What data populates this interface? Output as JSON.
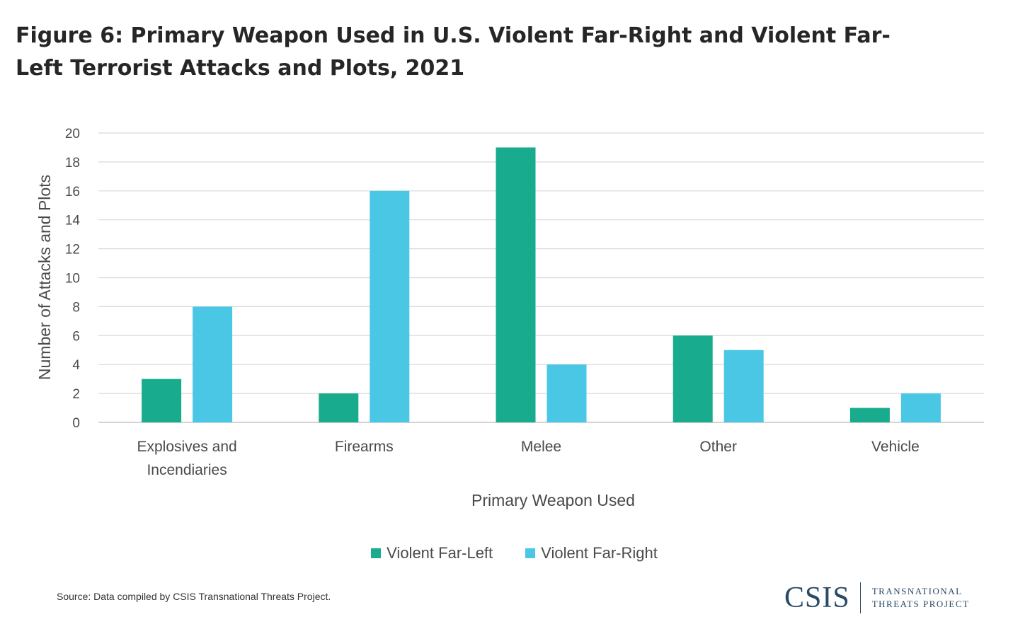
{
  "title": "Figure 6: Primary Weapon Used in U.S. Violent Far-Right and Violent Far-Left Terrorist Attacks and Plots, 2021",
  "source": "Source: Data compiled by CSIS Transnational Threats Project.",
  "logo": {
    "main": "CSIS",
    "sub_line1": "TRANSNATIONAL",
    "sub_line2": "THREATS PROJECT"
  },
  "chart_data": {
    "type": "bar",
    "title": "Figure 6: Primary Weapon Used in U.S. Violent Far-Right and Violent Far-Left Terrorist Attacks and Plots, 2021",
    "categories": [
      "Explosives and Incendiaries",
      "Firearms",
      "Melee",
      "Other",
      "Vehicle"
    ],
    "category_label_lines": [
      [
        "Explosives and",
        "Incendiaries"
      ],
      [
        "Firearms"
      ],
      [
        "Melee"
      ],
      [
        "Other"
      ],
      [
        "Vehicle"
      ]
    ],
    "series": [
      {
        "name": "Violent Far-Left",
        "color": "#19ab8d",
        "values": [
          3,
          2,
          19,
          6,
          1
        ]
      },
      {
        "name": "Violent Far-Right",
        "color": "#4bc7e6",
        "values": [
          8,
          16,
          4,
          5,
          2
        ]
      }
    ],
    "xlabel": "Primary Weapon Used",
    "ylabel": "Number of Attacks and Plots",
    "ylim": [
      0,
      20
    ],
    "yticks": [
      0,
      2,
      4,
      6,
      8,
      10,
      12,
      14,
      16,
      18,
      20
    ],
    "grid": true,
    "legend_position": "bottom"
  }
}
